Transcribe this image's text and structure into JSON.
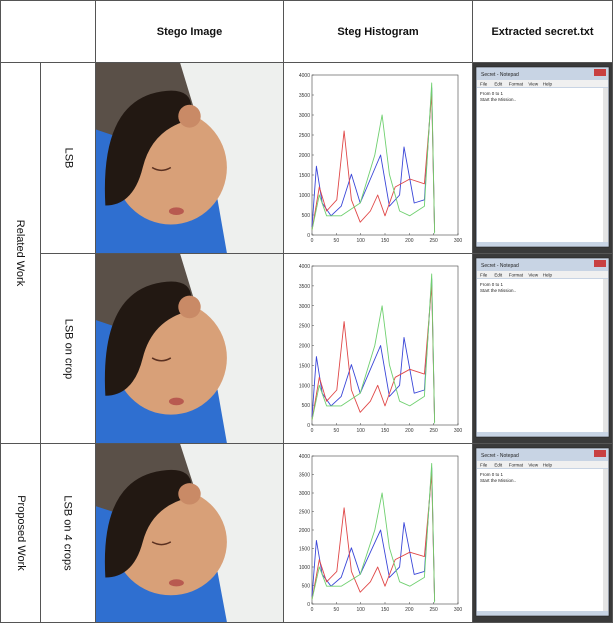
{
  "header": {
    "columns": [
      "Stego Image",
      "Steg Histogram",
      "Extracted secret.txt"
    ]
  },
  "row_groups": [
    {
      "label": "Related Work"
    },
    {
      "label": "Proposed Work"
    }
  ],
  "rows": [
    {
      "method": "LSB"
    },
    {
      "method": "LSB on crop"
    },
    {
      "method": "LSB on 4 crops"
    }
  ],
  "histogram": {
    "xticks": [
      0,
      50,
      100,
      150,
      200,
      250,
      300
    ],
    "yticks": [
      0,
      500,
      1000,
      1500,
      2000,
      2500,
      3000,
      3500,
      4000
    ]
  },
  "notepad": {
    "title": "Secret - Notepad",
    "menu": [
      "File",
      "Edit",
      "Format",
      "View",
      "Help"
    ],
    "lines": [
      "From 0 to 1",
      "Start the Mission.."
    ]
  }
}
